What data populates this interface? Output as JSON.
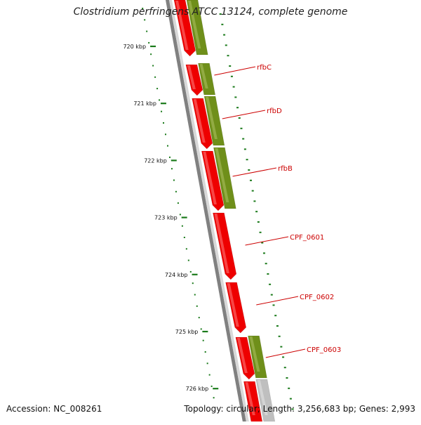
{
  "title": "Clostridium perfringens ATCC 13124, complete genome",
  "accession": "Accession: NC_008261",
  "genome_info": "Topology: circular; Length: 3,256,683 bp; Genes: 2,993",
  "colors": {
    "forward_cds": "#ee0000",
    "forward_highlight": "#ff8080",
    "reverse_cds": "#6f8f1a",
    "reverse_highlight": "#aec266",
    "backbone": "#808080",
    "ticks": "#1a7a1a",
    "label": "#cc0000",
    "other_feature": "#bfbfbf"
  },
  "kbp_labels": [
    {
      "kbp": 720,
      "text": "720 kbp"
    },
    {
      "kbp": 721,
      "text": "721 kbp"
    },
    {
      "kbp": 722,
      "text": "722 kbp"
    },
    {
      "kbp": 723,
      "text": "723 kbp"
    },
    {
      "kbp": 724,
      "text": "724 kbp"
    },
    {
      "kbp": 725,
      "text": "725 kbp"
    },
    {
      "kbp": 726,
      "text": "726 kbp"
    }
  ],
  "genes": [
    {
      "name": "rfbC"
    },
    {
      "name": "rfbD"
    },
    {
      "name": "rfbB"
    },
    {
      "name": "CPF_0601"
    },
    {
      "name": "CPF_0602"
    },
    {
      "name": "CPF_0603"
    }
  ]
}
